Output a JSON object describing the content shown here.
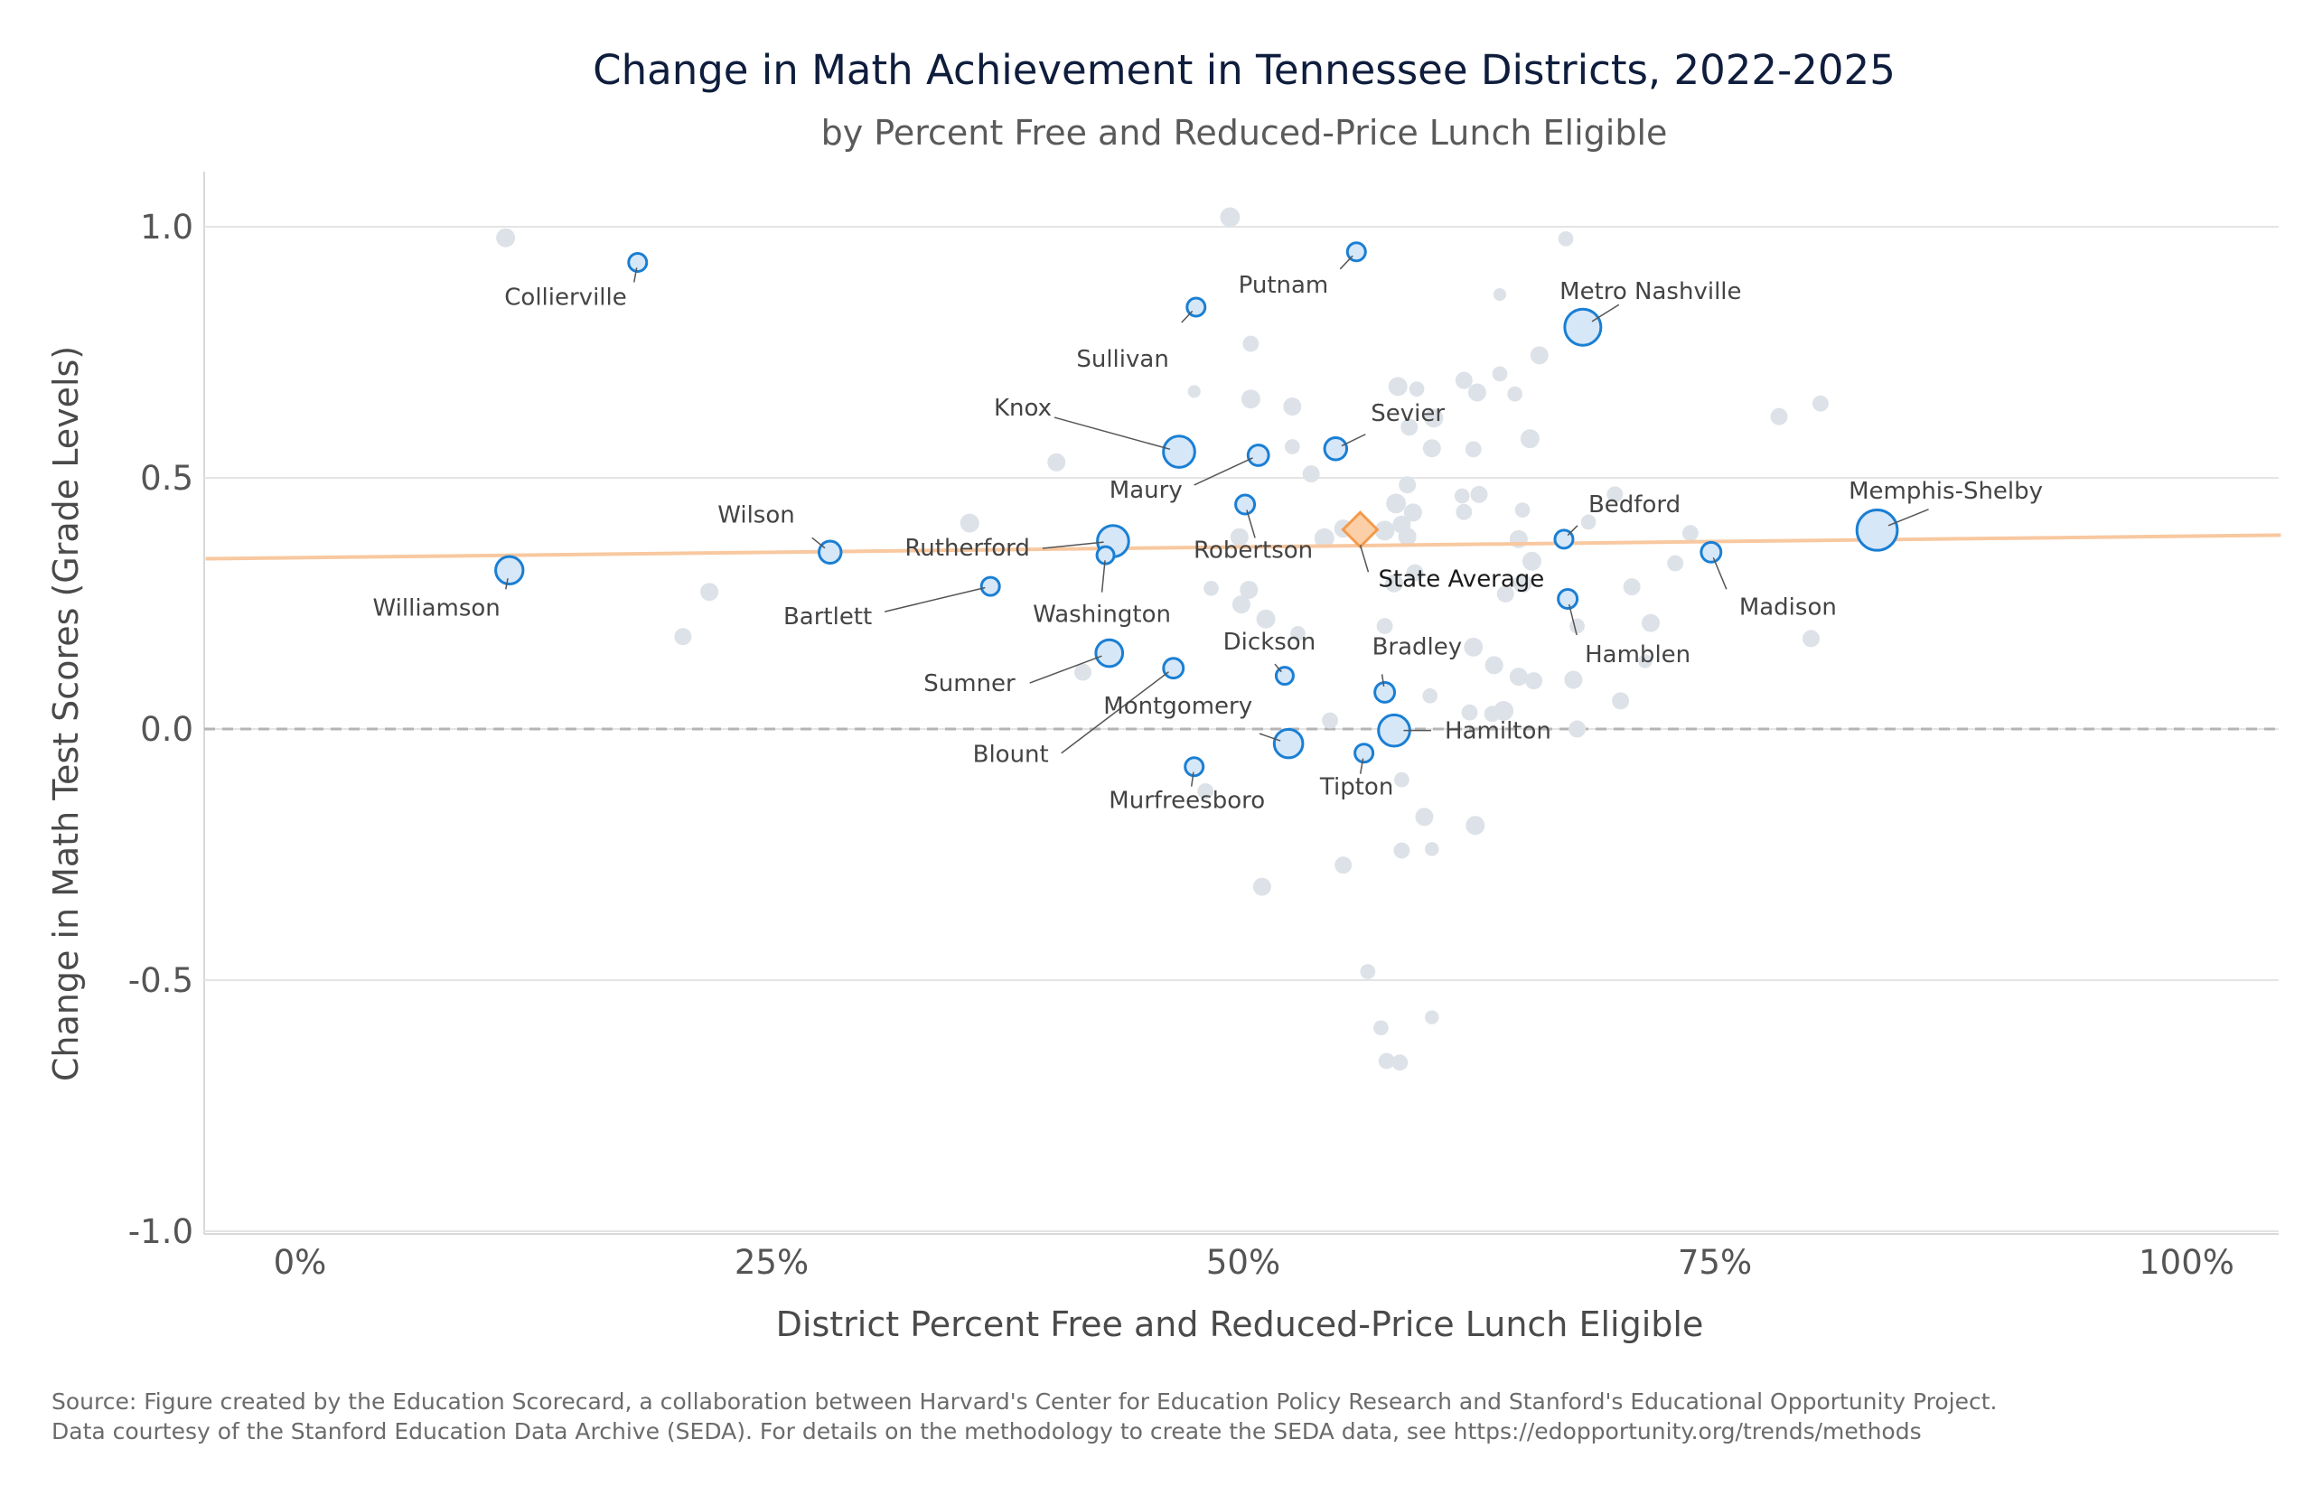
{
  "chart_data": {
    "type": "scatter",
    "title": "Change in Math Achievement in Tennessee Districts, 2022-2025",
    "subtitle": "by Percent Free and Reduced-Price Lunch Eligible",
    "xlabel": "District Percent Free and Reduced-Price Lunch Eligible",
    "ylabel": "Change in Math Test Scores (Grade Levels)",
    "xlim": [
      -0.05,
      1.05
    ],
    "ylim": [
      -1.02,
      1.11
    ],
    "x_ticks": [
      0,
      0.25,
      0.5,
      0.75,
      1.0
    ],
    "x_tick_labels": [
      "0%",
      "25%",
      "50%",
      "75%",
      "100%"
    ],
    "y_ticks": [
      1.0,
      0.5,
      0.0,
      -0.5,
      -1.0
    ],
    "y_tick_labels": [
      "1.0",
      "0.5",
      "0.0",
      "-0.5",
      "-1.0"
    ],
    "grid": true,
    "reference_line_y": 0,
    "trend_line": {
      "x": [
        -0.05,
        1.05
      ],
      "y": [
        0.339,
        0.386
      ],
      "color": "#f8c8a0"
    },
    "highlight_color": "#1a7fd4",
    "highlight_fill": "#d6e7f8",
    "background_color": "#dde2e8",
    "state_average": {
      "label": "State Average",
      "x": 0.562,
      "y": 0.397,
      "color": "#f49a4b"
    },
    "highlighted_districts": [
      {
        "label": "Collierville",
        "x": 0.179,
        "y": 0.929,
        "size": 1
      },
      {
        "label": "Putnam",
        "x": 0.56,
        "y": 0.95,
        "size": 1
      },
      {
        "label": "Metro Nashville",
        "x": 0.68,
        "y": 0.8,
        "size": 4
      },
      {
        "label": "Sullivan",
        "x": 0.475,
        "y": 0.84,
        "size": 1
      },
      {
        "label": "Knox",
        "x": 0.466,
        "y": 0.552,
        "size": 3
      },
      {
        "label": "Sevier",
        "x": 0.549,
        "y": 0.558,
        "size": 1.5
      },
      {
        "label": "Maury",
        "x": 0.508,
        "y": 0.545,
        "size": 1.3
      },
      {
        "label": "Wilson",
        "x": 0.281,
        "y": 0.352,
        "size": 1.5
      },
      {
        "label": "Rutherford",
        "x": 0.431,
        "y": 0.374,
        "size": 3
      },
      {
        "label": "Robertson",
        "x": 0.501,
        "y": 0.447,
        "size": 1.1
      },
      {
        "label": "Bedford",
        "x": 0.67,
        "y": 0.378,
        "size": 1
      },
      {
        "label": "Memphis-Shelby",
        "x": 0.836,
        "y": 0.396,
        "size": 5
      },
      {
        "label": "Williamson",
        "x": 0.111,
        "y": 0.316,
        "size": 2.3
      },
      {
        "label": "Bartlett",
        "x": 0.366,
        "y": 0.284,
        "size": 1
      },
      {
        "label": "Washington",
        "x": 0.427,
        "y": 0.346,
        "size": 0.9
      },
      {
        "label": "Madison",
        "x": 0.748,
        "y": 0.352,
        "size": 1.2
      },
      {
        "label": "Hamblen",
        "x": 0.672,
        "y": 0.259,
        "size": 1.1
      },
      {
        "label": "Sumner",
        "x": 0.429,
        "y": 0.151,
        "size": 2.2
      },
      {
        "label": "Dickson",
        "x": 0.522,
        "y": 0.106,
        "size": 0.9
      },
      {
        "label": "Bradley",
        "x": 0.575,
        "y": 0.073,
        "size": 1.2
      },
      {
        "label": "Blount",
        "x": 0.463,
        "y": 0.121,
        "size": 1.2
      },
      {
        "label": "Montgomery",
        "x": 0.524,
        "y": -0.029,
        "size": 2.5
      },
      {
        "label": "Hamilton",
        "x": 0.58,
        "y": -0.003,
        "size": 3
      },
      {
        "label": "Tipton",
        "x": 0.564,
        "y": -0.048,
        "size": 1
      },
      {
        "label": "Murfreesboro",
        "x": 0.474,
        "y": -0.075,
        "size": 1
      }
    ],
    "other_districts": [
      [
        0.109,
        0.978,
        1.1
      ],
      [
        0.493,
        1.019,
        1.2
      ],
      [
        0.671,
        0.976,
        0.7
      ],
      [
        0.636,
        0.865,
        0.5
      ],
      [
        0.504,
        0.767,
        0.8
      ],
      [
        0.657,
        0.744,
        1.0
      ],
      [
        0.474,
        0.672,
        0.5
      ],
      [
        0.504,
        0.657,
        1.1
      ],
      [
        0.526,
        0.642,
        1.0
      ],
      [
        0.582,
        0.682,
        1.1
      ],
      [
        0.592,
        0.677,
        0.7
      ],
      [
        0.601,
        0.619,
        1.1
      ],
      [
        0.588,
        0.601,
        0.9
      ],
      [
        0.617,
        0.694,
        0.9
      ],
      [
        0.624,
        0.67,
        1.0
      ],
      [
        0.636,
        0.707,
        0.7
      ],
      [
        0.644,
        0.667,
        0.7
      ],
      [
        0.6,
        0.559,
        1.0
      ],
      [
        0.622,
        0.557,
        0.8
      ],
      [
        0.652,
        0.578,
        1.1
      ],
      [
        0.784,
        0.622,
        0.9
      ],
      [
        0.806,
        0.648,
        0.8
      ],
      [
        0.526,
        0.562,
        0.7
      ],
      [
        0.536,
        0.508,
        0.9
      ],
      [
        0.401,
        0.531,
        1.0
      ],
      [
        0.587,
        0.486,
        0.9
      ],
      [
        0.581,
        0.449,
        1.2
      ],
      [
        0.59,
        0.431,
        1.0
      ],
      [
        0.616,
        0.464,
        0.7
      ],
      [
        0.625,
        0.467,
        0.9
      ],
      [
        0.617,
        0.432,
        0.8
      ],
      [
        0.648,
        0.436,
        0.7
      ],
      [
        0.553,
        0.399,
        1.0
      ],
      [
        0.543,
        0.38,
        1.2
      ],
      [
        0.575,
        0.395,
        1.2
      ],
      [
        0.584,
        0.407,
        1.0
      ],
      [
        0.587,
        0.383,
        1.0
      ],
      [
        0.498,
        0.382,
        1.0
      ],
      [
        0.355,
        0.41,
        1.1
      ],
      [
        0.646,
        0.378,
        1.0
      ],
      [
        0.653,
        0.334,
        1.1
      ],
      [
        0.683,
        0.412,
        0.7
      ],
      [
        0.697,
        0.467,
        0.8
      ],
      [
        0.737,
        0.39,
        0.8
      ],
      [
        0.729,
        0.33,
        0.8
      ],
      [
        0.648,
        0.29,
        1.1
      ],
      [
        0.639,
        0.269,
        0.9
      ],
      [
        0.58,
        0.29,
        1.0
      ],
      [
        0.591,
        0.311,
        0.9
      ],
      [
        0.499,
        0.248,
        1.0
      ],
      [
        0.503,
        0.277,
        1.0
      ],
      [
        0.483,
        0.28,
        0.7
      ],
      [
        0.512,
        0.219,
        1.1
      ],
      [
        0.529,
        0.19,
        0.7
      ],
      [
        0.575,
        0.205,
        0.8
      ],
      [
        0.622,
        0.163,
        1.1
      ],
      [
        0.633,
        0.127,
        1.0
      ],
      [
        0.646,
        0.104,
        1.0
      ],
      [
        0.654,
        0.096,
        0.9
      ],
      [
        0.675,
        0.098,
        1.0
      ],
      [
        0.677,
        0.205,
        0.7
      ],
      [
        0.706,
        0.283,
        0.9
      ],
      [
        0.716,
        0.211,
        1.0
      ],
      [
        0.713,
        0.135,
        0.6
      ],
      [
        0.801,
        0.18,
        0.9
      ],
      [
        0.7,
        0.056,
        0.9
      ],
      [
        0.217,
        0.273,
        1.0
      ],
      [
        0.203,
        0.184,
        0.9
      ],
      [
        0.415,
        0.113,
        0.9
      ],
      [
        0.599,
        0.066,
        0.7
      ],
      [
        0.62,
        0.033,
        0.8
      ],
      [
        0.632,
        0.03,
        0.8
      ],
      [
        0.638,
        0.036,
        1.2
      ],
      [
        0.677,
        0.0,
        0.9
      ],
      [
        0.546,
        0.017,
        0.8
      ],
      [
        0.48,
        -0.124,
        0.8
      ],
      [
        0.584,
        -0.101,
        0.7
      ],
      [
        0.596,
        -0.175,
        1.0
      ],
      [
        0.623,
        -0.192,
        1.1
      ],
      [
        0.584,
        -0.242,
        0.8
      ],
      [
        0.6,
        -0.239,
        0.6
      ],
      [
        0.553,
        -0.271,
        0.9
      ],
      [
        0.51,
        -0.314,
        1.0
      ],
      [
        0.566,
        -0.483,
        0.7
      ],
      [
        0.573,
        -0.595,
        0.7
      ],
      [
        0.6,
        -0.574,
        0.6
      ],
      [
        0.576,
        -0.661,
        0.8
      ],
      [
        0.583,
        -0.664,
        0.8
      ]
    ],
    "source": [
      "Source: Figure created by the Education Scorecard, a collaboration between Harvard's Center for Education Policy Research and Stanford's Educational Opportunity Project.",
      "Data courtesy of the Stanford Education Data Archive (SEDA). For details on the methodology to create the SEDA data, see https://edopportunity.org/trends/methods"
    ]
  }
}
